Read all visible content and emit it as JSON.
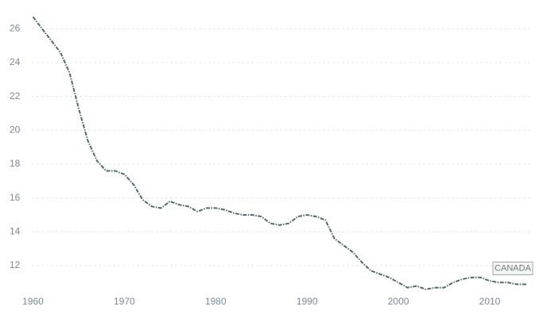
{
  "chart_data": {
    "type": "line",
    "x": [
      1960,
      1961,
      1962,
      1963,
      1964,
      1965,
      1966,
      1967,
      1968,
      1969,
      1970,
      1971,
      1972,
      1973,
      1974,
      1975,
      1976,
      1977,
      1978,
      1979,
      1980,
      1981,
      1982,
      1983,
      1984,
      1985,
      1986,
      1987,
      1988,
      1989,
      1990,
      1991,
      1992,
      1993,
      1994,
      1995,
      1996,
      1997,
      1998,
      1999,
      2000,
      2001,
      2002,
      2003,
      2004,
      2005,
      2006,
      2007,
      2008,
      2009,
      2010,
      2011,
      2012,
      2013,
      2014
    ],
    "series": [
      {
        "name": "CANADA",
        "color": "#4f6b6b",
        "values": [
          26.7,
          26.0,
          25.3,
          24.6,
          23.4,
          21.3,
          19.4,
          18.2,
          17.6,
          17.6,
          17.4,
          16.8,
          15.9,
          15.5,
          15.4,
          15.8,
          15.6,
          15.5,
          15.2,
          15.4,
          15.4,
          15.3,
          15.1,
          15.0,
          15.0,
          14.9,
          14.5,
          14.4,
          14.5,
          14.9,
          15.0,
          14.9,
          14.7,
          13.6,
          13.2,
          12.8,
          12.2,
          11.7,
          11.5,
          11.3,
          11.0,
          10.7,
          10.8,
          10.6,
          10.7,
          10.7,
          11.0,
          11.2,
          11.3,
          11.3,
          11.1,
          11.0,
          11.0,
          10.9,
          10.9
        ]
      }
    ],
    "xlim": [
      1959,
      2014.7
    ],
    "xticks": [
      1960,
      1970,
      1980,
      1990,
      2000,
      2010
    ],
    "ylim": [
      10.5,
      27.7
    ],
    "yticks": [
      12,
      14,
      16,
      18,
      20,
      22,
      24,
      26
    ],
    "grid": true
  }
}
